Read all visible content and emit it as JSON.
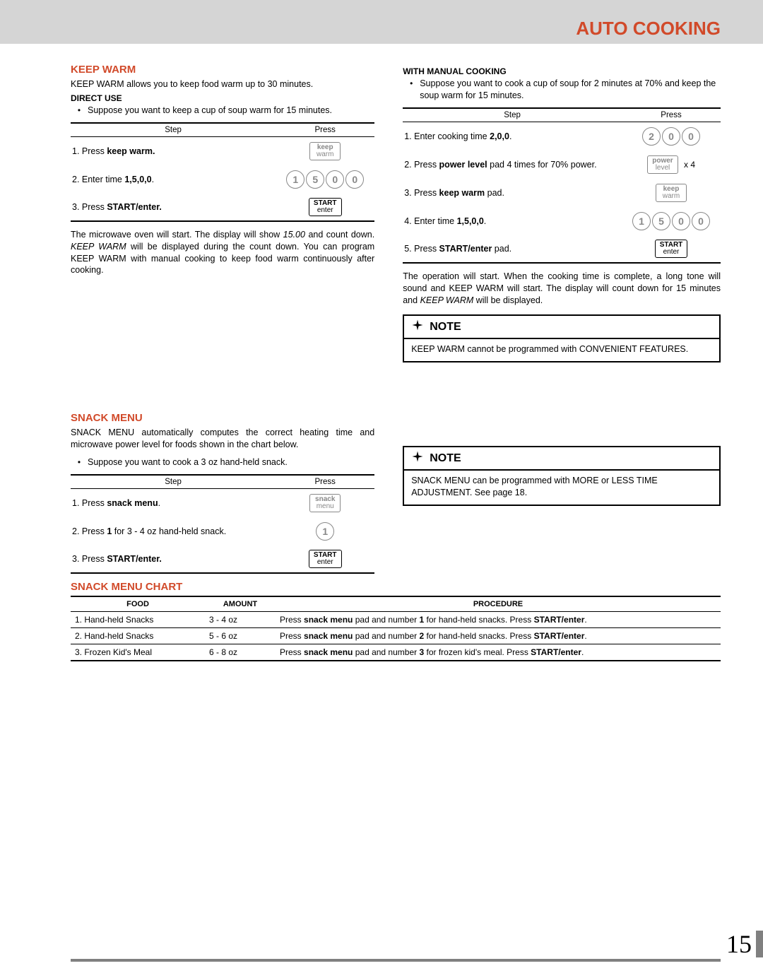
{
  "header": {
    "title": "AUTO COOKING"
  },
  "colors": {
    "accent": "#d14a2a",
    "band": "#d5d5d5",
    "gray": "#808080"
  },
  "left": {
    "keep_warm": {
      "heading": "KEEP WARM",
      "intro": "KEEP WARM allows you to keep food warm up to 30 minutes.",
      "direct_use_label": "DIRECT USE",
      "bullet": "Suppose you want to keep a cup of soup warm for 15 minutes.",
      "table": {
        "head_step": "Step",
        "head_press": "Press",
        "rows": [
          {
            "text_prefix": "1.  Press ",
            "text_bold": "keep warm.",
            "press_type": "box",
            "box_lines": [
              "keep",
              "warm"
            ]
          },
          {
            "text_prefix": "2.  Enter time ",
            "text_bold": "1,5,0,0",
            "text_suffix": ".",
            "press_type": "digits",
            "digits": [
              "1",
              "5",
              "0",
              "0"
            ]
          },
          {
            "text_prefix": "3.  Press ",
            "text_bold": "START/enter.",
            "press_type": "box_dark",
            "box_lines": [
              "START",
              "enter"
            ]
          }
        ]
      },
      "after": "The microwave oven will start. The display will show 15.00 and count down. KEEP WARM will be displayed during the count down. You can program KEEP WARM with manual cooking to keep food warm continuously after cooking."
    },
    "snack": {
      "heading": "SNACK MENU",
      "intro": "SNACK MENU automatically computes the correct heating time and microwave power level for foods shown in the chart below.",
      "bullet": "Suppose you want to cook a 3 oz hand-held snack.",
      "table": {
        "head_step": "Step",
        "head_press": "Press",
        "rows": [
          {
            "text_prefix": "1.  Press ",
            "text_bold": "snack menu",
            "text_suffix": ".",
            "press_type": "box",
            "box_lines": [
              "snack",
              "menu"
            ]
          },
          {
            "text_prefix": "2.  Press ",
            "text_bold": "1",
            "text_suffix": " for 3 - 4 oz hand-held snack.",
            "press_type": "digits",
            "digits": [
              "1"
            ]
          },
          {
            "text_prefix": "3.  Press ",
            "text_bold": "START/enter.",
            "press_type": "box_dark",
            "box_lines": [
              "START",
              "enter"
            ]
          }
        ]
      }
    }
  },
  "right": {
    "manual": {
      "heading": "WITH MANUAL COOKING",
      "bullet": "Suppose you want to cook a cup of soup for 2 minutes at 70% and keep the soup warm for 15 minutes.",
      "table": {
        "head_step": "Step",
        "head_press": "Press",
        "rows": [
          {
            "text_prefix": "1.  Enter cooking time ",
            "text_bold": "2,0,0",
            "text_suffix": ".",
            "press_type": "digits",
            "digits": [
              "2",
              "0",
              "0"
            ]
          },
          {
            "text_prefix": "2.  Press ",
            "text_bold": "power level",
            "text_suffix": " pad 4 times for 70% power.",
            "press_type": "box_mult",
            "box_lines": [
              "power",
              "level"
            ],
            "mult": "x 4"
          },
          {
            "text_prefix": "3.  Press ",
            "text_bold": "keep warm",
            "text_suffix": " pad.",
            "press_type": "box",
            "box_lines": [
              "keep",
              "warm"
            ]
          },
          {
            "text_prefix": "4.  Enter time ",
            "text_bold": "1,5,0,0",
            "text_suffix": ".",
            "press_type": "digits",
            "digits": [
              "1",
              "5",
              "0",
              "0"
            ]
          },
          {
            "text_prefix": "5.  Press ",
            "text_bold": "START/enter",
            "text_suffix": " pad.",
            "press_type": "box_dark",
            "box_lines": [
              "START",
              "enter"
            ]
          }
        ]
      },
      "after": "The operation will start. When the cooking time is complete, a long tone will sound and KEEP WARM will start. The display will count down for 15 minutes and KEEP WARM will be displayed."
    },
    "note1": {
      "title": "NOTE",
      "body": "KEEP WARM cannot be programmed with CONVENIENT FEATURES."
    },
    "note2": {
      "title": "NOTE",
      "body": "SNACK MENU can be programmed with MORE or LESS TIME ADJUSTMENT. See page 18."
    }
  },
  "chart": {
    "title": "SNACK MENU CHART",
    "head": {
      "food": "FOOD",
      "amount": "AMOUNT",
      "procedure": "PROCEDURE"
    },
    "rows": [
      {
        "food": "1. Hand-held Snacks",
        "amount": "3 - 4 oz",
        "proc_pre": "Press ",
        "proc_b1": "snack menu",
        "proc_mid": " pad and number ",
        "proc_b2": "1",
        "proc_post": " for hand-held snacks. Press ",
        "proc_b3": "START/enter",
        "proc_end": "."
      },
      {
        "food": "2. Hand-held Snacks",
        "amount": "5 - 6 oz",
        "proc_pre": "Press ",
        "proc_b1": "snack menu",
        "proc_mid": " pad and number ",
        "proc_b2": "2",
        "proc_post": " for hand-held snacks. Press ",
        "proc_b3": "START/enter",
        "proc_end": "."
      },
      {
        "food": "3. Frozen Kid's Meal",
        "amount": "6 - 8 oz",
        "proc_pre": "Press ",
        "proc_b1": "snack menu",
        "proc_mid": " pad and number ",
        "proc_b2": "3",
        "proc_post": " for frozen kid's meal. Press ",
        "proc_b3": "START/enter",
        "proc_end": "."
      }
    ]
  },
  "page_number": "15"
}
